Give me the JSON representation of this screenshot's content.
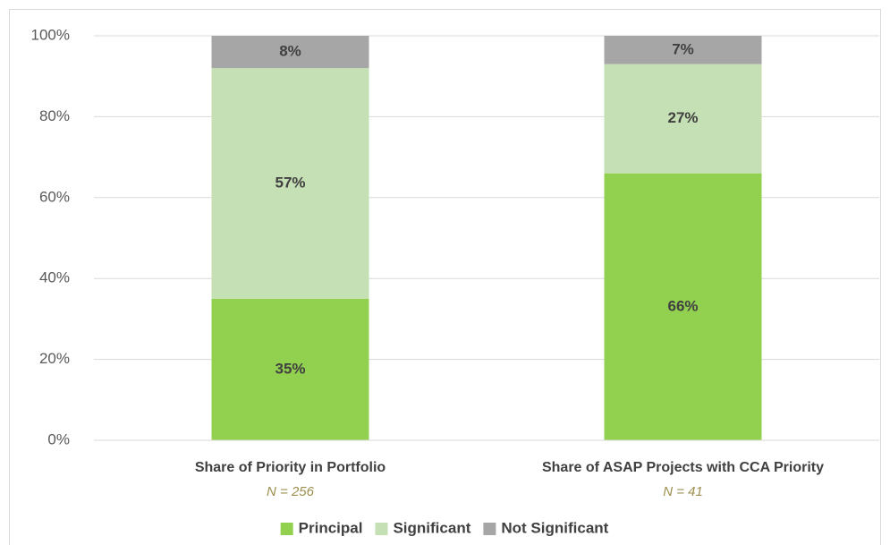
{
  "chart_data": {
    "type": "stacked_bar",
    "categories": [
      "Share of Priority in Portfolio",
      "Share of ASAP Projects with CCA Priority"
    ],
    "category_notes": [
      "N = 256",
      "N = 41"
    ],
    "series": [
      {
        "name": "Principal",
        "color": "#92d050",
        "values": [
          35,
          66
        ],
        "value_labels": [
          "35%",
          "66%"
        ]
      },
      {
        "name": "Significant",
        "color": "#c5e0b4",
        "values": [
          57,
          27
        ],
        "value_labels": [
          "57%",
          "27%"
        ]
      },
      {
        "name": "Not Significant",
        "color": "#a6a6a6",
        "values": [
          8,
          7
        ],
        "value_labels": [
          "8%",
          "7%"
        ]
      }
    ],
    "ylim": [
      0,
      100
    ],
    "yticks": [
      {
        "value": 0,
        "label": "0%"
      },
      {
        "value": 20,
        "label": "20%"
      },
      {
        "value": 40,
        "label": "40%"
      },
      {
        "value": 60,
        "label": "60%"
      },
      {
        "value": 80,
        "label": "80%"
      },
      {
        "value": 100,
        "label": "100%"
      }
    ],
    "grid": true,
    "legend": "bottom"
  }
}
